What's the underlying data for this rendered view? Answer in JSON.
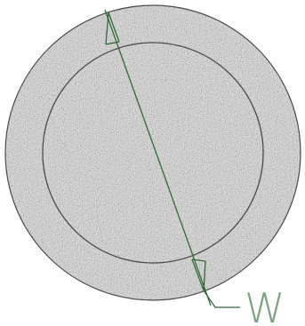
{
  "diagram": {
    "dimension_label": "W",
    "colors": {
      "background": "#ffffff",
      "ring_fill": "#d6d6d6",
      "ring_speckle_dark": "#9a9a9a",
      "ring_speckle_light": "#f2f2f2",
      "circle_stroke": "#4a4a4a",
      "dimension_stroke": "#2e6b37",
      "label_color": "#7aa382"
    }
  }
}
